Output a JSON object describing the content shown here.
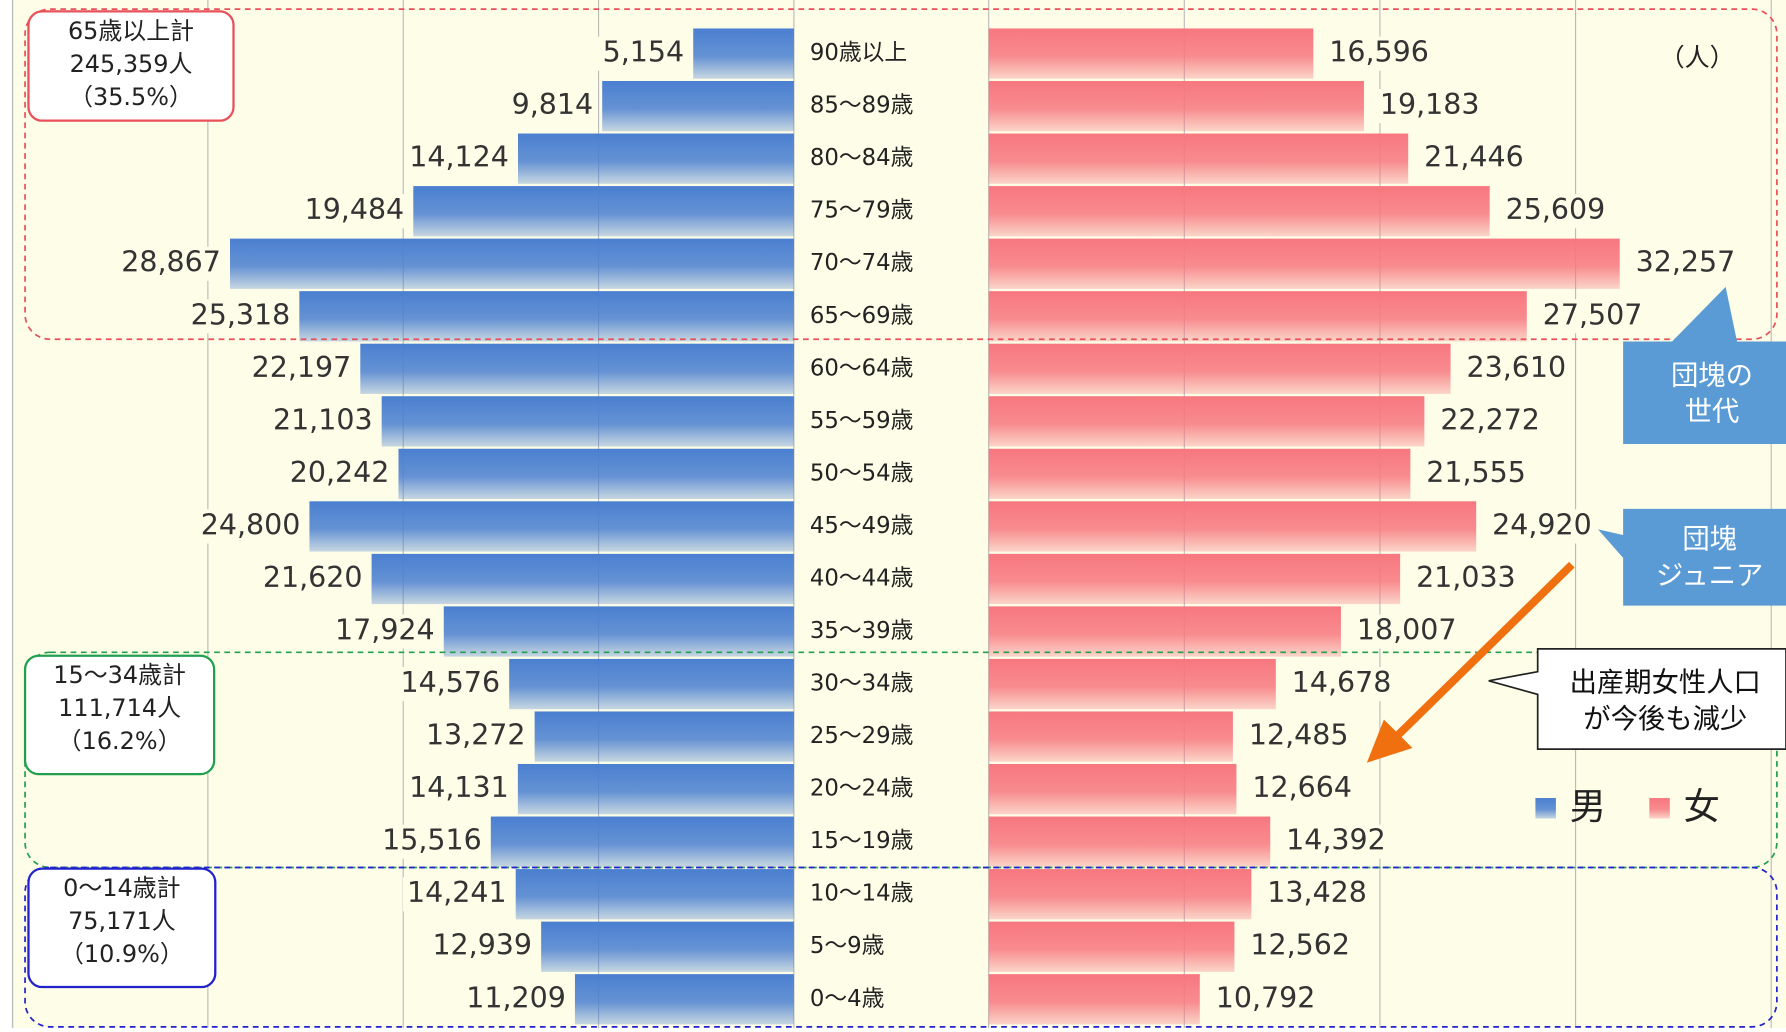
{
  "chart_data": {
    "type": "pyramid",
    "unit": "（人）",
    "categories": [
      "90歳以上",
      "85～89歳",
      "80～84歳",
      "75～79歳",
      "70～74歳",
      "65～69歳",
      "60～64歳",
      "55～59歳",
      "50～54歳",
      "45～49歳",
      "40～44歳",
      "35～39歳",
      "30～34歳",
      "25～29歳",
      "20～24歳",
      "15～19歳",
      "10～14歳",
      "5～9歳",
      "0～4歳"
    ],
    "series": [
      {
        "name": "男",
        "color": "#4a7fd0",
        "values": [
          5154,
          9814,
          14124,
          19484,
          28867,
          25318,
          22197,
          21103,
          20242,
          24800,
          21620,
          17924,
          14576,
          13272,
          14131,
          15516,
          14241,
          12939,
          11209
        ],
        "value_labels": [
          "5,154",
          "9,814",
          "14,124",
          "19,484",
          "28,867",
          "25,318",
          "22,197",
          "21,103",
          "20,242",
          "24,800",
          "21,620",
          "17,924",
          "14,576",
          "13,272",
          "14,131",
          "15,516",
          "14,241",
          "12,939",
          "11,209"
        ]
      },
      {
        "name": "女",
        "color": "#f7777f",
        "values": [
          16596,
          19183,
          21446,
          25609,
          32257,
          27507,
          23610,
          22272,
          21555,
          24920,
          21033,
          18007,
          14678,
          12485,
          12664,
          14392,
          13428,
          12562,
          10792
        ],
        "value_labels": [
          "16,596",
          "19,183",
          "21,446",
          "25,609",
          "32,257",
          "27,507",
          "23,610",
          "22,272",
          "21,555",
          "24,920",
          "21,033",
          "18,007",
          "14,678",
          "12,485",
          "12,664",
          "14,392",
          "13,428",
          "12,562",
          "10,792"
        ]
      }
    ],
    "xlim": [
      0,
      40000
    ],
    "xticks": [
      0,
      10000,
      20000,
      30000,
      40000
    ],
    "grid": true,
    "legend": "lower right",
    "groups": [
      {
        "lines": [
          "65歳以上計",
          "245,359人",
          "（35.5%）"
        ],
        "color": "#e8505a"
      },
      {
        "lines": [
          "15～34歳計",
          "111,714人",
          "（16.2%）"
        ],
        "color": "#22a050"
      },
      {
        "lines": [
          "0～14歳計",
          "75,171人",
          "（10.9%）"
        ],
        "color": "#2222cc"
      }
    ],
    "callouts": [
      {
        "lines": [
          "団塊の",
          "世代"
        ]
      },
      {
        "lines": [
          "団塊",
          "ジュニア"
        ]
      },
      {
        "lines": [
          "出産期女性人口",
          "が今後も減少"
        ]
      }
    ]
  }
}
